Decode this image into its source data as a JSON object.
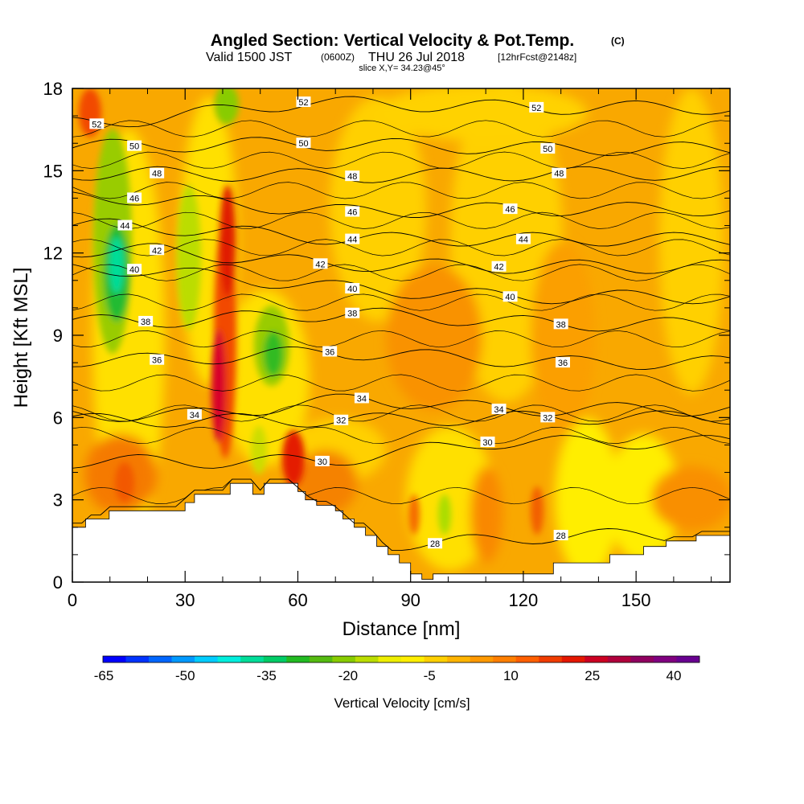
{
  "header": {
    "title": "Angled Section: Vertical Velocity & Pot.Temp.",
    "title_unit": "(C)",
    "valid_prefix": "Valid 1500 JST",
    "valid_utc": "(0600Z)",
    "valid_date": "THU 26 Jul 2018",
    "forecast_info": "[12hrFcst@2148z]",
    "slice_info": "slice X,Y= 34.23@45°"
  },
  "colors": {
    "terrain": "#ffffff",
    "frame": "#000000",
    "background_field": "#f9a800"
  },
  "chart_data": {
    "type": "heatmap",
    "xlabel": "Distance [nm]",
    "ylabel": "Height [Kft MSL]",
    "xlim": [
      0,
      175
    ],
    "ylim": [
      0,
      18
    ],
    "x_ticks": [
      0,
      30,
      60,
      90,
      120,
      150
    ],
    "x_tick_labels": [
      "0",
      "30",
      "60",
      "90",
      "120",
      "150"
    ],
    "y_ticks": [
      0,
      3,
      6,
      9,
      12,
      15,
      18
    ],
    "y_tick_labels": [
      "0",
      "3",
      "6",
      "9",
      "12",
      "15",
      "18"
    ],
    "colorbar": {
      "label": "Vertical Velocity [cm/s]",
      "tick_labels": [
        "-65",
        "-50",
        "-35",
        "-20",
        "-5",
        "10",
        "25",
        "40"
      ],
      "colors": [
        "#0000ff",
        "#0033ff",
        "#0066ff",
        "#0099ff",
        "#00ccff",
        "#00eedd",
        "#00dd99",
        "#00cc66",
        "#22bb22",
        "#55bb11",
        "#88cc00",
        "#bbdd00",
        "#eeee00",
        "#ffee00",
        "#ffd000",
        "#ffb400",
        "#ff9900",
        "#ff7f00",
        "#ff5f00",
        "#f03c00",
        "#e41700",
        "#cc0022",
        "#b0003c",
        "#900060",
        "#800080",
        "#680090"
      ]
    },
    "contours": {
      "variable": "Pot.Temp.",
      "unit": "C",
      "labels": [
        {
          "x": 6.5,
          "y": 16.7,
          "text": "52"
        },
        {
          "x": 61.5,
          "y": 17.5,
          "text": "52"
        },
        {
          "x": 123.5,
          "y": 17.3,
          "text": "52"
        },
        {
          "x": 16.5,
          "y": 15.9,
          "text": "50"
        },
        {
          "x": 61.5,
          "y": 16.0,
          "text": "50"
        },
        {
          "x": 126.5,
          "y": 15.8,
          "text": "50"
        },
        {
          "x": 22.5,
          "y": 14.9,
          "text": "48"
        },
        {
          "x": 74.5,
          "y": 14.8,
          "text": "48"
        },
        {
          "x": 129.5,
          "y": 14.9,
          "text": "48"
        },
        {
          "x": 16.5,
          "y": 14.0,
          "text": "46"
        },
        {
          "x": 74.5,
          "y": 13.5,
          "text": "46"
        },
        {
          "x": 116.5,
          "y": 13.6,
          "text": "46"
        },
        {
          "x": 14.0,
          "y": 13.0,
          "text": "44"
        },
        {
          "x": 74.5,
          "y": 12.5,
          "text": "44"
        },
        {
          "x": 120.0,
          "y": 12.5,
          "text": "44"
        },
        {
          "x": 22.5,
          "y": 12.1,
          "text": "42"
        },
        {
          "x": 66.0,
          "y": 11.6,
          "text": "42"
        },
        {
          "x": 113.5,
          "y": 11.5,
          "text": "42"
        },
        {
          "x": 16.5,
          "y": 11.4,
          "text": "40"
        },
        {
          "x": 74.5,
          "y": 10.7,
          "text": "40"
        },
        {
          "x": 116.5,
          "y": 10.4,
          "text": "40"
        },
        {
          "x": 19.5,
          "y": 9.5,
          "text": "38"
        },
        {
          "x": 74.5,
          "y": 9.8,
          "text": "38"
        },
        {
          "x": 130.0,
          "y": 9.4,
          "text": "38"
        },
        {
          "x": 22.5,
          "y": 8.1,
          "text": "36"
        },
        {
          "x": 68.5,
          "y": 8.4,
          "text": "36"
        },
        {
          "x": 130.5,
          "y": 8.0,
          "text": "36"
        },
        {
          "x": 32.5,
          "y": 6.1,
          "text": "34"
        },
        {
          "x": 77.0,
          "y": 6.7,
          "text": "34"
        },
        {
          "x": 113.5,
          "y": 6.3,
          "text": "34"
        },
        {
          "x": 71.5,
          "y": 5.9,
          "text": "32"
        },
        {
          "x": 126.5,
          "y": 6.0,
          "text": "32"
        },
        {
          "x": 66.5,
          "y": 4.4,
          "text": "30"
        },
        {
          "x": 110.5,
          "y": 5.1,
          "text": "30"
        },
        {
          "x": 96.5,
          "y": 1.4,
          "text": "28"
        },
        {
          "x": 130.0,
          "y": 1.7,
          "text": "28"
        }
      ]
    },
    "terrain_profile": {
      "x": [
        0,
        3.5,
        3.5,
        9.8,
        9.8,
        30,
        30,
        32.5,
        32.5,
        42,
        42,
        48,
        48,
        51,
        51,
        60,
        60,
        62,
        62,
        65,
        65,
        70,
        70,
        72,
        72,
        75,
        75,
        78,
        78,
        81,
        81,
        84,
        84,
        87,
        87,
        90,
        90,
        93,
        93,
        96,
        96,
        100,
        100,
        104,
        104,
        108,
        108,
        128,
        128,
        143,
        143,
        152,
        152,
        158,
        158,
        166,
        166,
        175
      ],
      "y": [
        2.0,
        2.0,
        2.3,
        2.3,
        2.6,
        2.6,
        2.9,
        2.9,
        3.2,
        3.2,
        3.6,
        3.6,
        3.2,
        3.2,
        3.6,
        3.6,
        3.3,
        3.3,
        3.0,
        3.0,
        2.8,
        2.8,
        2.6,
        2.6,
        2.3,
        2.3,
        2.0,
        2.0,
        1.7,
        1.7,
        1.3,
        1.3,
        1.0,
        1.0,
        0.7,
        0.7,
        0.3,
        0.3,
        0.1,
        0.1,
        0.3,
        0.3,
        0.3,
        0.3,
        0.3,
        0.3,
        0.3,
        0.3,
        0.7,
        0.7,
        1.0,
        1.0,
        1.3,
        1.3,
        1.5,
        1.5,
        1.7,
        1.7
      ]
    },
    "grid": false
  }
}
